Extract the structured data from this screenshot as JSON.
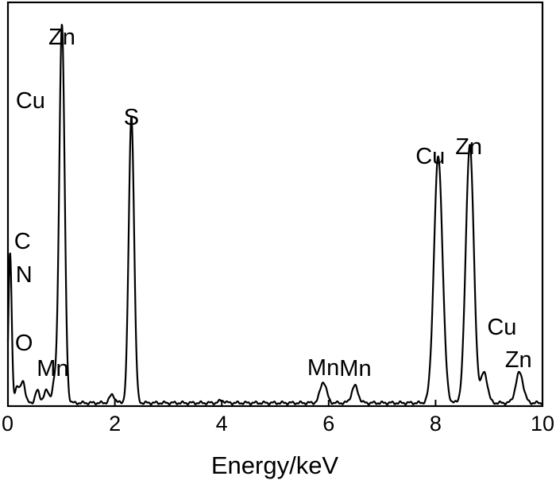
{
  "chart_data": {
    "type": "line",
    "title": "",
    "xlabel": "Energy/keV",
    "ylabel": "",
    "xlim": [
      0,
      10
    ],
    "ylim": [
      0,
      100
    ],
    "grid": false,
    "x_ticks": [
      0,
      2,
      4,
      6,
      8,
      10
    ],
    "x_tick_labels": [
      "0",
      "2",
      "4",
      "6",
      "8",
      "10"
    ],
    "series": [
      {
        "peaks": [
          {
            "center": 0.04,
            "height": 37,
            "width": 0.03
          },
          {
            "center": 0.17,
            "height": 4,
            "width": 0.04
          },
          {
            "center": 0.28,
            "height": 5.5,
            "width": 0.04
          },
          {
            "center": 0.55,
            "height": 3,
            "width": 0.04
          },
          {
            "center": 0.72,
            "height": 3,
            "width": 0.05
          },
          {
            "center": 0.87,
            "height": 5,
            "width": 0.04
          },
          {
            "center": 1.01,
            "height": 94,
            "width": 0.05
          },
          {
            "center": 1.95,
            "height": 2,
            "width": 0.05
          },
          {
            "center": 2.31,
            "height": 71,
            "width": 0.05
          },
          {
            "center": 4.0,
            "height": 0.6,
            "width": 0.05
          },
          {
            "center": 5.9,
            "height": 5.2,
            "width": 0.06
          },
          {
            "center": 6.49,
            "height": 4.2,
            "width": 0.06
          },
          {
            "center": 8.05,
            "height": 61,
            "width": 0.08
          },
          {
            "center": 8.64,
            "height": 64,
            "width": 0.075
          },
          {
            "center": 8.91,
            "height": 7.5,
            "width": 0.06
          },
          {
            "center": 9.57,
            "height": 7.5,
            "width": 0.07
          }
        ],
        "baseline": 0.8
      }
    ],
    "annotations": [
      {
        "text": "Zn",
        "x": 1.01
      },
      {
        "text": "Cu",
        "x": 0.6
      },
      {
        "text": "S",
        "x": 2.31
      },
      {
        "text": "C",
        "x": 0.27
      },
      {
        "text": "N",
        "x": 0.3
      },
      {
        "text": "O",
        "x": 0.3
      },
      {
        "text": "Mn",
        "x": 0.72
      },
      {
        "text": "Mn",
        "x": 5.9
      },
      {
        "text": "Mn",
        "x": 6.5
      },
      {
        "text": "Cu",
        "x": 8.05
      },
      {
        "text": "Zn",
        "x": 8.62
      },
      {
        "text": "Cu",
        "x": 9.24
      },
      {
        "text": "Zn",
        "x": 9.55
      }
    ]
  }
}
